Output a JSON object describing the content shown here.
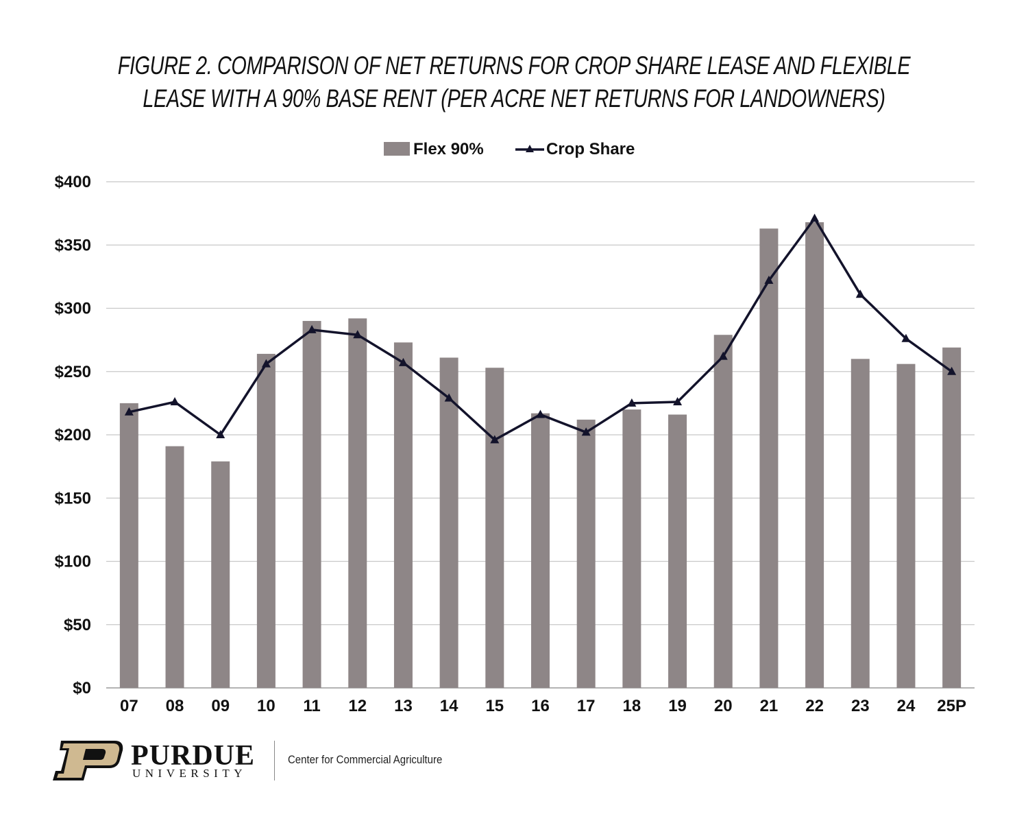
{
  "title_lines": [
    "FIGURE 2. COMPARISON OF NET RETURNS FOR CROP SHARE LEASE AND FLEXIBLE",
    "LEASE WITH A 90% BASE RENT  (PER ACRE NET RETURNS FOR LANDOWNERS)"
  ],
  "legend": {
    "bar_label": "Flex 90%",
    "line_label": "Crop Share"
  },
  "branding": {
    "university": "PURDUE",
    "subline": "UNIVERSITY",
    "center": "Center for Commercial Agriculture"
  },
  "colors": {
    "bar": "#8e8687",
    "line": "#13132b",
    "grid": "#c8c8c8",
    "logo_gold": "#cfb991"
  },
  "chart_data": {
    "type": "bar",
    "categories": [
      "07",
      "08",
      "09",
      "10",
      "11",
      "12",
      "13",
      "14",
      "15",
      "16",
      "17",
      "18",
      "19",
      "20",
      "21",
      "22",
      "23",
      "24",
      "25P"
    ],
    "ylim": [
      0,
      400
    ],
    "yticks": [
      0,
      50,
      100,
      150,
      200,
      250,
      300,
      350,
      400
    ],
    "ytick_labels": [
      "$0",
      "$50",
      "$100",
      "$150",
      "$200",
      "$250",
      "$300",
      "$350",
      "$400"
    ],
    "grid": true,
    "legend_position": "top-center",
    "series": [
      {
        "name": "Flex 90%",
        "type": "bar",
        "values": [
          225,
          191,
          179,
          264,
          290,
          292,
          273,
          261,
          253,
          217,
          212,
          220,
          216,
          279,
          363,
          368,
          260,
          256,
          269
        ]
      },
      {
        "name": "Crop Share",
        "type": "line",
        "marker": "triangle",
        "values": [
          218,
          226,
          200,
          256,
          283,
          279,
          257,
          229,
          196,
          216,
          202,
          225,
          226,
          262,
          322,
          371,
          311,
          276,
          250
        ]
      }
    ]
  }
}
